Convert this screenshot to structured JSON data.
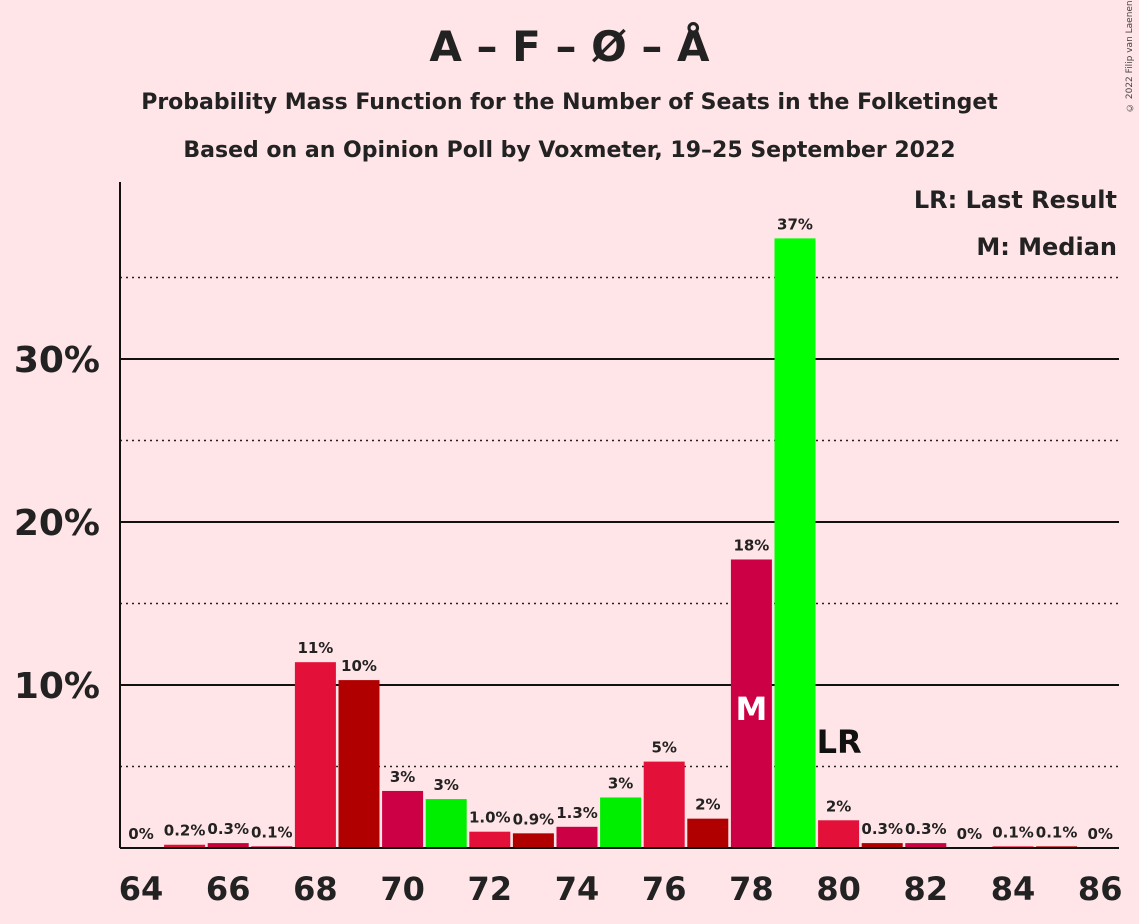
{
  "chart_data": {
    "type": "bar",
    "title": "A – F – Ø – Å",
    "subtitle": "Probability Mass Function for the Number of Seats in the Folketinget",
    "subtitle2": "Based on an Opinion Poll by Voxmeter, 19–25 September 2022",
    "copyright": "© 2022 Filip van Laenen",
    "legend": {
      "last_result": "LR: Last Result",
      "median": "M: Median"
    },
    "x": [
      64,
      65,
      66,
      67,
      68,
      69,
      70,
      71,
      72,
      73,
      74,
      75,
      76,
      77,
      78,
      79,
      80,
      81,
      82,
      83,
      84,
      85,
      86
    ],
    "values": [
      0,
      0.2,
      0.3,
      0.1,
      11.4,
      10.3,
      3.5,
      3.0,
      1.0,
      0.9,
      1.3,
      3.1,
      5.3,
      1.8,
      17.7,
      37.4,
      1.7,
      0.3,
      0.3,
      0,
      0.1,
      0.1,
      0
    ],
    "labels": [
      "0%",
      "0.2%",
      "0.3%",
      "0.1%",
      "11%",
      "10%",
      "3%",
      "3%",
      "1.0%",
      "0.9%",
      "1.3%",
      "3%",
      "5%",
      "2%",
      "18%",
      "37%",
      "2%",
      "0.3%",
      "0.3%",
      "0%",
      "0.1%",
      "0.1%",
      "0%"
    ],
    "colors": [
      "#E0103A",
      "#E0103A",
      "#C8003C",
      "#C8003C",
      "#E31039",
      "#B00000",
      "#CC0044",
      "#00EE00",
      "#E31039",
      "#B00000",
      "#CC0044",
      "#00EE00",
      "#E31039",
      "#B00000",
      "#CC0044",
      "#00FF00",
      "#E31039",
      "#B00000",
      "#CC0044",
      "#00EE00",
      "#E31039",
      "#B00000",
      "#CC0044"
    ],
    "x_ticks": [
      64,
      66,
      68,
      70,
      72,
      74,
      76,
      78,
      80,
      82,
      84,
      86
    ],
    "y_ticks": [
      10,
      20,
      30
    ],
    "y_tick_labels": [
      "10%",
      "20%",
      "30%"
    ],
    "y_minor_gridlines": [
      5,
      15,
      25,
      35
    ],
    "ylim": [
      0,
      41
    ],
    "median": {
      "seat": 78,
      "marker": "M"
    },
    "last_result": {
      "seat": 80,
      "marker": "LR"
    }
  }
}
